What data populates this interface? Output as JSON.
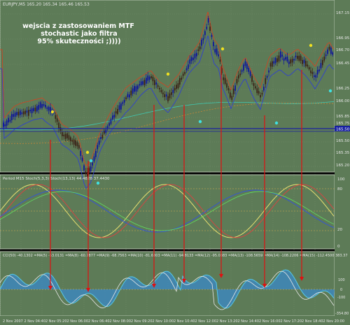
{
  "window": {
    "symbol_info": "EURJPY,M5  165.20 165.34 165.46 165.53"
  },
  "annotation": {
    "line1": "wejscia z zastosowaniem MTF",
    "line2": "stochastic jako filtra",
    "line3": "95% skuteczności ;))))"
  },
  "indicators": {
    "stoch_label": "Period M15 Stoch(5,3,3)  Stoch(13,13)  44.4828 37.4430",
    "cci_label": "CCI(50) -40.1302  =MA(5) -53.0131  =MA(8) -60.7877  =MA(9) -68.7563  =MA(10) -81.6303  =MA(11) -94.8133  =MA(12) -95.0383  =MA(13) -108.5659  =MA(14) -108.2206  =MA(15) -112.4500"
  },
  "price_axis": [
    "167.15",
    "166.95",
    "166.70",
    "166.45",
    "166.25",
    "166.00",
    "165.85",
    "165.75",
    "165.55",
    "165.50",
    "165.35",
    "165.20"
  ],
  "current_price": "165.50",
  "stoch_axis": [
    "100",
    "80",
    "20",
    "0"
  ],
  "cci_axis": [
    "383.37",
    "100",
    "0",
    "-100",
    "-354.80"
  ],
  "time_axis": [
    "2 Nov 2007",
    "2 Nov 04:40",
    "2 Nov 05:20",
    "2 Nov 06:00",
    "2 Nov 06:40",
    "2 Nov 08:00",
    "2 Nov 09:20",
    "2 Nov 10:00",
    "2 Nov 10:40",
    "2 Nov 12:00",
    "2 Nov 13:20",
    "2 Nov 14:40",
    "2 Nov 16:00",
    "2 Nov 17:20",
    "2 Nov 18:40",
    "2 Nov 20:00"
  ],
  "colors": {
    "background": "#5d7b57",
    "grid": "#7b9474",
    "bull_candle": "#0a10a0",
    "bear_candle": "#3a1e14",
    "arrow": "#e01010",
    "stoch_main": "#e8e070",
    "stoch_signal": "#e04040",
    "cci": "#55c8e8",
    "ma_line": "#e8e8e8",
    "price_marker": "#1820a0"
  }
}
